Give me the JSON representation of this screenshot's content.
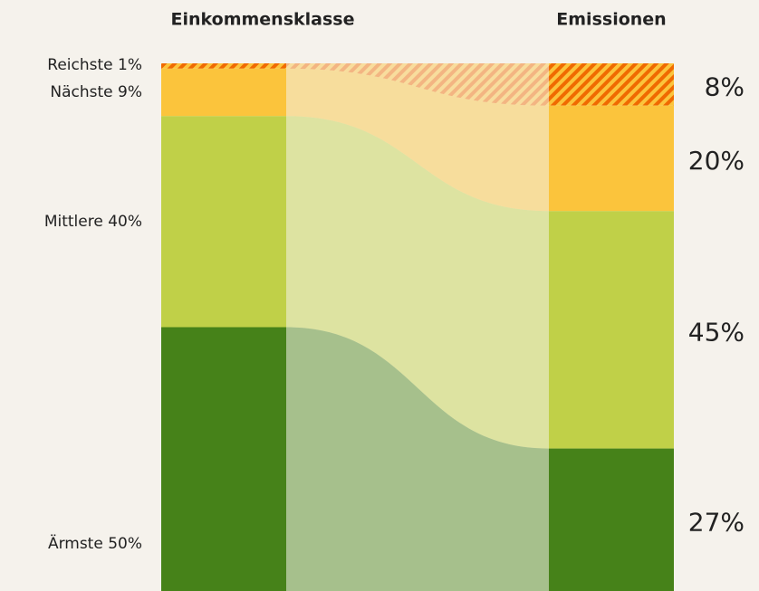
{
  "chart_data": {
    "type": "sankey",
    "categories": [
      "Reichste 1%",
      "Nächste 9%",
      "Mittlere 40%",
      "Ärmste 50%"
    ],
    "colors": [
      "#fbc43c",
      "#fbc43c",
      "#c0d048",
      "#468219"
    ],
    "hatch": [
      true,
      false,
      false,
      false
    ],
    "hatch_color": "#f06a00",
    "series": [
      {
        "name": "Einkommensklasse",
        "values": [
          1,
          9,
          40,
          50
        ]
      },
      {
        "name": "Emissionen",
        "values": [
          8,
          20,
          45,
          27
        ],
        "value_labels": [
          "8%",
          "20%",
          "45%",
          "27%"
        ]
      }
    ]
  }
}
